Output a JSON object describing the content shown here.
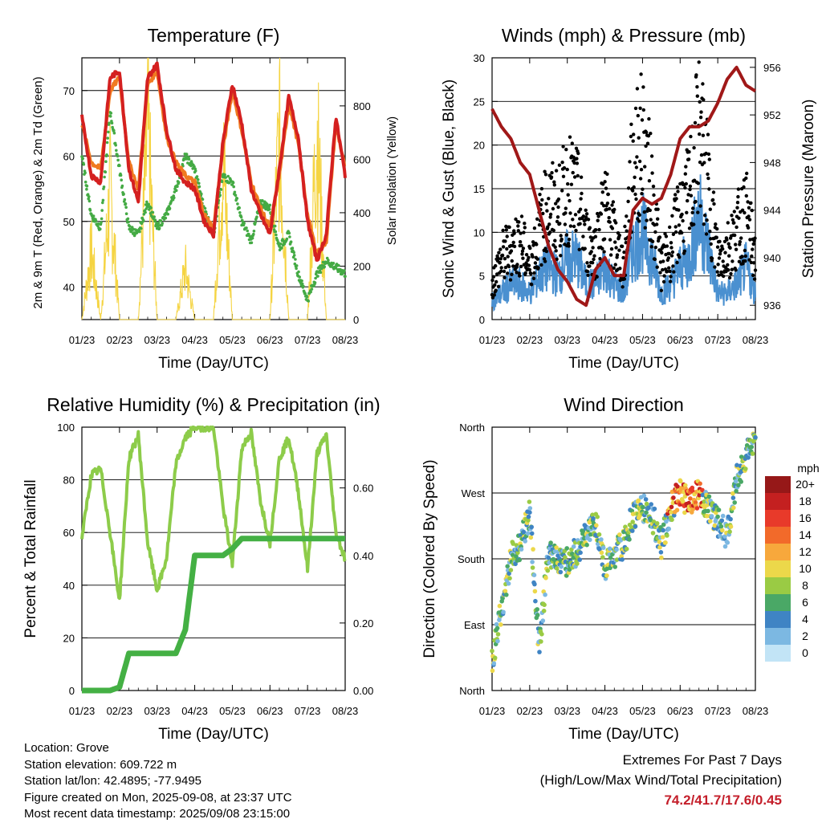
{
  "footer": {
    "location": "Location: Grove",
    "elevation": "Station elevation: 609.722 m",
    "latlon": "Station lat/lon: 42.4895; -77.9495",
    "created": "Figure created on Mon, 2025-09-08, at 23:37 UTC",
    "recent": "Most recent data timestamp: 2025/09/08 23:15:00"
  },
  "extremes": {
    "title": "Extremes For Past 7 Days",
    "subtitle": "(High/Low/Max Wind/Total Precipitation)",
    "values": "74.2/41.7/17.6/0.45"
  },
  "colors": {
    "temp9m": "#d42020",
    "temp2m": "#f07a20",
    "dewpoint": "#44aa44",
    "solar": "#f5d442",
    "sonic": "#4a90d0",
    "gust": "#000000",
    "pressure": "#a01818",
    "rh": "#8dcc4a",
    "precip": "#44b044"
  },
  "chart_data": [
    {
      "type": "line",
      "title": "Temperature (F)",
      "xlabel": "Time (Day/UTC)",
      "ylabel": "2m & 9m T (Red, Orange) & 2m Td (Green)",
      "y2label": "Solar Insolation (Yellow)",
      "xticks": [
        "01/23",
        "02/23",
        "03/23",
        "04/23",
        "05/23",
        "06/23",
        "07/23",
        "08/23"
      ],
      "ylim": [
        35,
        75
      ],
      "yticks": [
        40,
        50,
        60,
        70
      ],
      "y2lim": [
        0,
        980
      ],
      "y2ticks": [
        0,
        200,
        400,
        600,
        800
      ],
      "x": [
        0,
        0.25,
        0.5,
        0.75,
        1.0,
        1.25,
        1.5,
        1.75,
        2.0,
        2.25,
        2.5,
        2.75,
        3.0,
        3.25,
        3.5,
        3.75,
        4.0,
        4.25,
        4.5,
        4.75,
        5.0,
        5.25,
        5.5,
        5.75,
        6.0,
        6.25,
        6.5,
        6.75,
        7.0
      ],
      "series": [
        {
          "key": "t9",
          "values": [
            66,
            57,
            56,
            72,
            73,
            58,
            53,
            72,
            74,
            64,
            58,
            56,
            55,
            50,
            48,
            62,
            71,
            65,
            55,
            51,
            48,
            58,
            69,
            63,
            50,
            44,
            48,
            66,
            57
          ]
        },
        {
          "key": "t2",
          "values": [
            65,
            59,
            58,
            70,
            72,
            59,
            55,
            71,
            73,
            63,
            59,
            57,
            56,
            51,
            49,
            61,
            70,
            64,
            56,
            52,
            49,
            57,
            68,
            62,
            51,
            45,
            47,
            65,
            58
          ]
        },
        {
          "key": "td",
          "values": [
            60,
            51,
            49,
            67,
            58,
            49,
            48,
            53,
            49,
            51,
            55,
            60,
            58,
            52,
            48,
            57,
            56,
            50,
            47,
            53,
            52,
            46,
            48,
            42,
            38,
            42,
            44,
            43,
            42
          ]
        },
        {
          "key": "solar",
          "values": [
            0,
            320,
            0,
            600,
            0,
            0,
            0,
            880,
            0,
            0,
            0,
            240,
            0,
            0,
            0,
            740,
            0,
            0,
            0,
            0,
            0,
            880,
            0,
            0,
            0,
            880,
            0,
            0,
            0
          ]
        }
      ]
    },
    {
      "type": "scatter",
      "title": "Winds (mph) & Pressure (mb)",
      "xlabel": "Time (Day/UTC)",
      "ylabel": "Sonic Wind & Gust (Blue, Black)",
      "y2label": "Station Pressure (Maroon)",
      "xticks": [
        "01/23",
        "02/23",
        "03/23",
        "04/23",
        "05/23",
        "06/23",
        "07/23",
        "08/23"
      ],
      "ylim": [
        0,
        30
      ],
      "yticks": [
        0,
        5,
        10,
        15,
        20,
        25,
        30
      ],
      "y2lim": [
        934.8,
        956.8
      ],
      "y2ticks": [
        936,
        940,
        944,
        948,
        952,
        956
      ],
      "x": [
        0,
        0.25,
        0.5,
        0.75,
        1.0,
        1.25,
        1.5,
        1.75,
        2.0,
        2.25,
        2.5,
        2.75,
        3.0,
        3.25,
        3.5,
        3.75,
        4.0,
        4.25,
        4.5,
        4.75,
        5.0,
        5.25,
        5.5,
        5.75,
        6.0,
        6.25,
        6.5,
        6.75,
        7.0
      ],
      "series": [
        {
          "key": "gust",
          "values": [
            4,
            7,
            8,
            9,
            6,
            10,
            13,
            12,
            15,
            14,
            9,
            8,
            13,
            9,
            6,
            18,
            20,
            14,
            6,
            8,
            12,
            14,
            22,
            15,
            7,
            8,
            10,
            12,
            7
          ]
        },
        {
          "key": "sonic",
          "values": [
            2,
            3,
            4,
            4,
            3,
            5,
            6,
            5,
            7,
            7,
            4,
            4,
            6,
            4,
            3,
            8,
            10,
            7,
            3,
            4,
            6,
            7,
            12,
            8,
            3,
            3,
            4,
            6,
            3
          ]
        },
        {
          "key": "pressure",
          "values": [
            952.5,
            951,
            950,
            948,
            947,
            944,
            941,
            939,
            938,
            936.5,
            936,
            939,
            940,
            938.5,
            938.5,
            944,
            945,
            944.5,
            945,
            947,
            950,
            951,
            951,
            951.5,
            953,
            955,
            956,
            954.5,
            954
          ]
        }
      ]
    },
    {
      "type": "line",
      "title": "Relative Humidity (%) & Precipitation (in)",
      "xlabel": "Time (Day/UTC)",
      "ylabel": "Percent & Total Rainfall",
      "xticks": [
        "01/23",
        "02/23",
        "03/23",
        "04/23",
        "05/23",
        "06/23",
        "07/23",
        "08/23"
      ],
      "ylim": [
        0,
        100
      ],
      "yticks": [
        0,
        20,
        40,
        60,
        80,
        100
      ],
      "y2lim": [
        0,
        0.78
      ],
      "y2ticks": [
        "0.00",
        "0.20",
        "0.40",
        "0.60"
      ],
      "x": [
        0,
        0.25,
        0.5,
        0.75,
        1.0,
        1.25,
        1.5,
        1.75,
        2.0,
        2.25,
        2.5,
        2.75,
        3.0,
        3.25,
        3.5,
        3.75,
        4.0,
        4.25,
        4.5,
        4.75,
        5.0,
        5.25,
        5.5,
        5.75,
        6.0,
        6.25,
        6.5,
        6.75,
        7.0
      ],
      "series": [
        {
          "key": "rh",
          "values": [
            58,
            82,
            84,
            60,
            34,
            88,
            97,
            56,
            38,
            50,
            86,
            96,
            100,
            100,
            100,
            70,
            48,
            92,
            98,
            72,
            56,
            88,
            96,
            76,
            46,
            90,
            97,
            60,
            50
          ]
        },
        {
          "key": "precip",
          "values": [
            0,
            0,
            0,
            0,
            0.01,
            0.11,
            0.11,
            0.11,
            0.11,
            0.11,
            0.11,
            0.18,
            0.4,
            0.4,
            0.4,
            0.4,
            0.42,
            0.45,
            0.45,
            0.45,
            0.45,
            0.45,
            0.45,
            0.45,
            0.45,
            0.45,
            0.45,
            0.45,
            0.45
          ]
        }
      ]
    },
    {
      "type": "scatter",
      "title": "Wind Direction",
      "xlabel": "Time (Day/UTC)",
      "ylabel": "Direction (Colored By Speed)",
      "xticks": [
        "01/23",
        "02/23",
        "03/23",
        "04/23",
        "05/23",
        "06/23",
        "07/23",
        "08/23"
      ],
      "ylim": [
        0,
        360
      ],
      "yticks": [
        0,
        90,
        180,
        270,
        360
      ],
      "ytick_labels": [
        "North",
        "East",
        "South",
        "West",
        "North"
      ],
      "legend_title": "mph",
      "legend_labels": [
        "20+",
        "18",
        "16",
        "14",
        "12",
        "10",
        "8",
        "6",
        "4",
        "2",
        "0"
      ],
      "legend_colors": [
        "#961818",
        "#c42020",
        "#e83a2a",
        "#f26a2a",
        "#f7a83c",
        "#ecd84a",
        "#9acb44",
        "#4aa866",
        "#3f84c4",
        "#7cb8e2",
        "#c2e4f6"
      ],
      "x": [
        0,
        0.25,
        0.5,
        0.75,
        1.0,
        1.25,
        1.5,
        1.75,
        2.0,
        2.25,
        2.5,
        2.75,
        3.0,
        3.25,
        3.5,
        3.75,
        4.0,
        4.25,
        4.5,
        4.75,
        5.0,
        5.25,
        5.5,
        5.75,
        6.0,
        6.25,
        6.5,
        6.75,
        7.0
      ],
      "series": [
        {
          "key": "direction",
          "values": [
            40,
            110,
            180,
            200,
            240,
            60,
            190,
            180,
            175,
            190,
            210,
            230,
            170,
            185,
            200,
            240,
            250,
            240,
            200,
            250,
            270,
            255,
            270,
            250,
            230,
            210,
            290,
            320,
            350
          ]
        }
      ]
    }
  ]
}
